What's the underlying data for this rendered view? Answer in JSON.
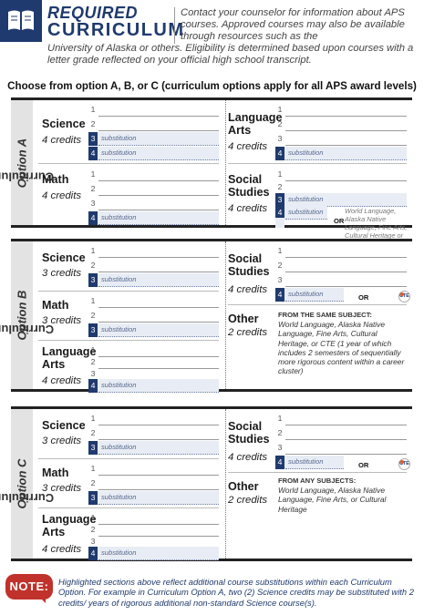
{
  "header": {
    "required": "REQUIRED",
    "curriculum": "CURRICULUM",
    "intro_line1": "Contact your counselor for information about APS courses. Approved courses may also be available through resources such as the",
    "intro_line2": "University of Alaska or others. Eligibility is determined based upon courses with a letter grade reflected on your official high school transcript.",
    "icon": "book-icon"
  },
  "choose": "Choose from option A, B, or C (curriculum options apply for all APS award levels)",
  "options": [
    {
      "label_prefix": "Curriculum ",
      "label_option": "Option A",
      "subjects": {
        "science": {
          "title": "Science",
          "credits": "4 credits"
        },
        "math": {
          "title": "Math",
          "credits": "4 credits"
        },
        "lang_arts": {
          "title": "Language Arts",
          "credits": "4 credits"
        },
        "social": {
          "title": "Social Studies",
          "credits": "4 credits",
          "note": "World Language, Alaska Native Language, Fine Arts, Cultural Heritage or CTE"
        }
      }
    },
    {
      "label_prefix": "Curriculum ",
      "label_option": "Option B",
      "subjects": {
        "science": {
          "title": "Science",
          "credits": "3 credits"
        },
        "math": {
          "title": "Math",
          "credits": "3 credits"
        },
        "lang_arts": {
          "title": "Language Arts",
          "credits": "4 credits"
        },
        "social": {
          "title": "Social Studies",
          "credits": "4 credits"
        },
        "other": {
          "title": "Other",
          "credits": "2 credits",
          "note_head": "FROM THE SAME SUBJECT:",
          "note_body": "World Language, Alaska Native Language, Fine Arts, Cultural Heritage, or CTE (1 year of which includes 2 semesters of sequentially more rigorous content within a career cluster)"
        }
      }
    },
    {
      "label_prefix": "Curriculum ",
      "label_option": "Option C",
      "subjects": {
        "science": {
          "title": "Science",
          "credits": "3 credits"
        },
        "math": {
          "title": "Math",
          "credits": "3 credits"
        },
        "lang_arts": {
          "title": "Language Arts",
          "credits": "4 credits"
        },
        "social": {
          "title": "Social Studies",
          "credits": "4 credits"
        },
        "other": {
          "title": "Other",
          "credits": "2 credits",
          "note_head": "FROM ANY SUBJECTS:",
          "note_body": "World Language, Alaska Native Language, Fine Arts, or Cultural Heritage"
        }
      }
    }
  ],
  "labels": {
    "substitution": "substitution",
    "or": "OR",
    "cte": "CTE",
    "n1": "1",
    "n2": "2",
    "n3": "3",
    "n4": "4"
  },
  "note": {
    "badge": "NOTE:",
    "text": "Highlighted sections above reflect additional course substitutions within each Curriculum Option. For example in Curriculum Option A, two (2) Science credits may be substituted with 2 credits/ years of rigorous additional non-standard Science course(s)."
  },
  "colors": {
    "navy": "#1f3a6e",
    "highlight": "#e8ecf4",
    "note_red": "#c0322b"
  }
}
